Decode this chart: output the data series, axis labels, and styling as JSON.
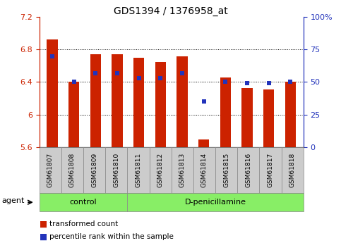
{
  "title": "GDS1394 / 1376958_at",
  "samples": [
    "GSM61807",
    "GSM61808",
    "GSM61809",
    "GSM61810",
    "GSM61811",
    "GSM61812",
    "GSM61813",
    "GSM61814",
    "GSM61815",
    "GSM61816",
    "GSM61817",
    "GSM61818"
  ],
  "red_values": [
    6.92,
    6.4,
    6.74,
    6.74,
    6.7,
    6.65,
    6.72,
    5.69,
    6.46,
    6.33,
    6.31,
    6.4
  ],
  "blue_percent": [
    70,
    50,
    57,
    57,
    53,
    53,
    57,
    35,
    50,
    49,
    49,
    50
  ],
  "ylim_left": [
    5.6,
    7.2
  ],
  "ylim_right": [
    0,
    100
  ],
  "yticks_left": [
    5.6,
    6.0,
    6.4,
    6.8,
    7.2
  ],
  "yticks_right": [
    0,
    25,
    50,
    75,
    100
  ],
  "ytick_labels_left": [
    "5.6",
    "6",
    "6.4",
    "6.8",
    "7.2"
  ],
  "ytick_labels_right": [
    "0",
    "25",
    "50",
    "75",
    "100%"
  ],
  "bar_color": "#cc2200",
  "dot_color": "#2233bb",
  "bar_width": 0.5,
  "control_count": 4,
  "control_label": "control",
  "treatment_label": "D-penicillamine",
  "group_color": "#88ee66",
  "sample_box_color": "#cccccc",
  "agent_label": "agent",
  "legend_red": "transformed count",
  "legend_blue": "percentile rank within the sample",
  "plot_axes": [
    0.115,
    0.395,
    0.775,
    0.535
  ],
  "n_samples": 12
}
